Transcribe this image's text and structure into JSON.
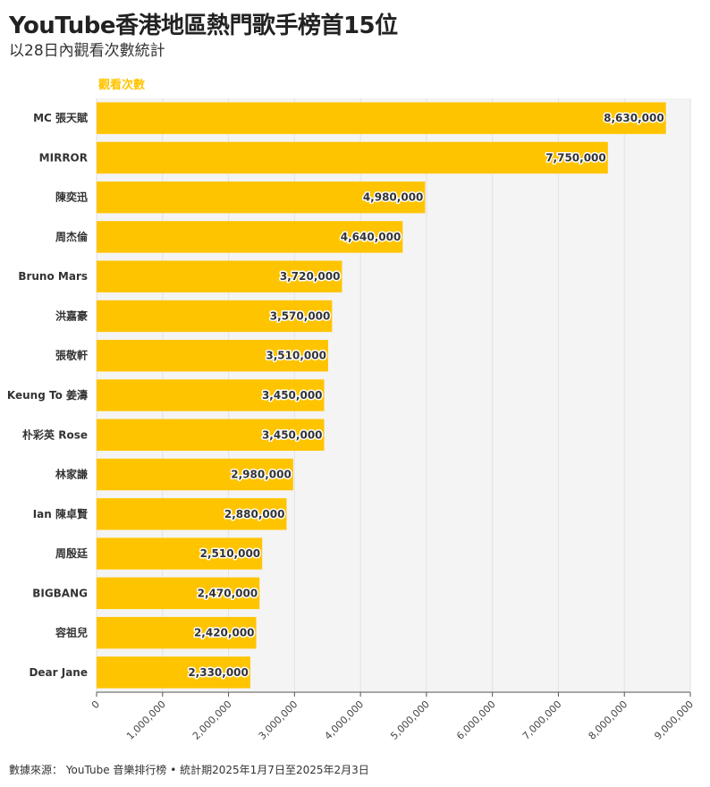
{
  "header": {
    "title": "YouTube香港地區熱門歌手榜首15位",
    "subtitle": "以28日內觀看次數統計"
  },
  "footer": {
    "source": "數據來源： YouTube 音樂排行榜 • 統計期2025年1月7日至2025年2月3日"
  },
  "colors": {
    "bar": "#ffc400",
    "plot_background": "#f4f4f4",
    "grid": "#e2e2e2"
  },
  "chart_data": {
    "type": "bar",
    "orientation": "horizontal",
    "title": "YouTube香港地區熱門歌手榜首15位",
    "subtitle": "以28日內觀看次數統計",
    "categories": [
      "MC 張天賦",
      "MIRROR",
      "陳奕迅",
      "周杰倫",
      "Bruno Mars",
      "洪嘉豪",
      "張敬軒",
      "Keung To 姜濤",
      "朴彩英 Rose",
      "林家謙",
      "Ian 陳卓賢",
      "周殷廷",
      "BIGBANG",
      "容祖兒",
      "Dear Jane"
    ],
    "series": [
      {
        "name": "觀看次數",
        "values": [
          8630000,
          7750000,
          4980000,
          4640000,
          3720000,
          3570000,
          3510000,
          3450000,
          3450000,
          2980000,
          2880000,
          2510000,
          2470000,
          2420000,
          2330000
        ],
        "value_labels": [
          "8,630,000",
          "7,750,000",
          "4,980,000",
          "4,640,000",
          "3,720,000",
          "3,570,000",
          "3,510,000",
          "3,450,000",
          "3,450,000",
          "2,980,000",
          "2,880,000",
          "2,510,000",
          "2,470,000",
          "2,420,000",
          "2,330,000"
        ]
      }
    ],
    "xlim": [
      0,
      9000000
    ],
    "ticks": [
      0,
      1000000,
      2000000,
      3000000,
      4000000,
      5000000,
      6000000,
      7000000,
      8000000,
      9000000
    ],
    "tick_labels": [
      "0",
      "1,000,000",
      "2,000,000",
      "3,000,000",
      "4,000,000",
      "5,000,000",
      "6,000,000",
      "7,000,000",
      "8,000,000",
      "9,000,000"
    ],
    "grid": true,
    "legend": "top-left"
  }
}
